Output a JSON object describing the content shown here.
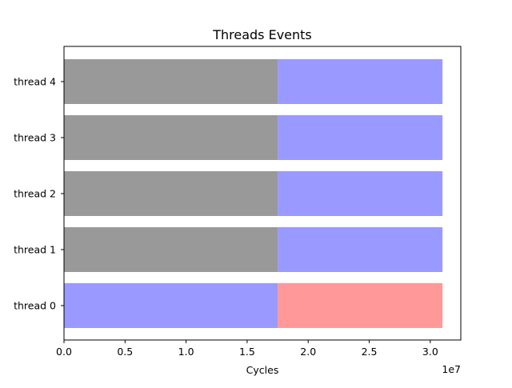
{
  "chart_data": {
    "type": "bar",
    "orientation": "horizontal",
    "stacked": true,
    "title": "Threads Events",
    "xlabel": "Cycles",
    "ylabel": "",
    "x_offset_label": "1e7",
    "categories": [
      "thread 0",
      "thread 1",
      "thread 2",
      "thread 3",
      "thread 4"
    ],
    "xlim": [
      0,
      32500000
    ],
    "x_ticks": [
      0,
      5000000,
      10000000,
      15000000,
      20000000,
      25000000,
      30000000
    ],
    "x_tick_labels": [
      "0.0",
      "0.5",
      "1.0",
      "1.5",
      "2.0",
      "2.5",
      "3.0"
    ],
    "grid": false,
    "segments": [
      {
        "category": "thread 0",
        "start": 0,
        "end": 17500000,
        "color": "#9999ff"
      },
      {
        "category": "thread 0",
        "start": 17500000,
        "end": 31000000,
        "color": "#ff9999"
      },
      {
        "category": "thread 1",
        "start": 0,
        "end": 17500000,
        "color": "#999999"
      },
      {
        "category": "thread 1",
        "start": 17500000,
        "end": 31000000,
        "color": "#9999ff"
      },
      {
        "category": "thread 2",
        "start": 0,
        "end": 17500000,
        "color": "#999999"
      },
      {
        "category": "thread 2",
        "start": 17500000,
        "end": 31000000,
        "color": "#9999ff"
      },
      {
        "category": "thread 3",
        "start": 0,
        "end": 17500000,
        "color": "#999999"
      },
      {
        "category": "thread 3",
        "start": 17500000,
        "end": 31000000,
        "color": "#9999ff"
      },
      {
        "category": "thread 4",
        "start": 0,
        "end": 17500000,
        "color": "#999999"
      },
      {
        "category": "thread 4",
        "start": 17500000,
        "end": 31000000,
        "color": "#9999ff"
      }
    ]
  }
}
